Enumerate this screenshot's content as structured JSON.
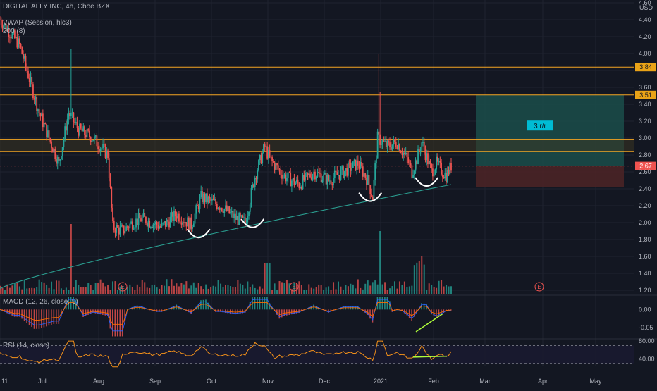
{
  "header": {
    "symbol": "DIGITAL ALLY INC, 4h, Cboe BZX",
    "indicator_vwap": "VWAP (Session, hlc3)",
    "indicator_sma": "200 (8)",
    "currency": "USD"
  },
  "macd_legend": "MACD (12, 26, close, 9)",
  "rsi_legend": "RSI (14, close)",
  "trade_box_label": "3 r/r",
  "earnings_marker": "E",
  "colors": {
    "background": "#131722",
    "up": "#26a69a",
    "down": "#ef5350",
    "level_line": "#f5a623",
    "sma": "#2a9d8f",
    "rsi": "#f7931a",
    "highlight": "#b0ff3a",
    "profit_zone": "#1b4d4a",
    "loss_zone": "#4a2326",
    "label_bg": "#e9a317",
    "rr_label_bg": "#00bcd4"
  },
  "chart_data": {
    "type": "candlestick",
    "timeframe": "4h",
    "price_range": [
      1.15,
      4.6
    ],
    "price_ticks": [
      "4.60",
      "4.40",
      "4.20",
      "4.00",
      "3.80",
      "3.60",
      "3.40",
      "3.20",
      "3.00",
      "2.80",
      "2.60",
      "2.40",
      "2.20",
      "2.00",
      "1.80",
      "1.60",
      "1.40",
      "1.20"
    ],
    "x_ticks": [
      "11",
      "Jul",
      "Aug",
      "Sep",
      "Oct",
      "Nov",
      "Dec",
      "2021",
      "Feb",
      "Mar",
      "Apr",
      "May"
    ],
    "price_path": [
      [
        0,
        4.4
      ],
      [
        4,
        4.1
      ],
      [
        8,
        3.3
      ],
      [
        10,
        3.0
      ],
      [
        12,
        2.7
      ],
      [
        14,
        3.3
      ],
      [
        16,
        3.1
      ],
      [
        19,
        3.0
      ],
      [
        22,
        2.8
      ],
      [
        23,
        1.95
      ],
      [
        25,
        1.9
      ],
      [
        27,
        2.0
      ],
      [
        29,
        2.05
      ],
      [
        33,
        1.95
      ],
      [
        36,
        2.1
      ],
      [
        39,
        1.97
      ],
      [
        41,
        2.3
      ],
      [
        45,
        2.2
      ],
      [
        48,
        2.05
      ],
      [
        50,
        2.0
      ],
      [
        52,
        2.55
      ],
      [
        54,
        2.9
      ],
      [
        55,
        2.75
      ],
      [
        58,
        2.55
      ],
      [
        61,
        2.45
      ],
      [
        64,
        2.6
      ],
      [
        67,
        2.5
      ],
      [
        70,
        2.6
      ],
      [
        73,
        2.7
      ],
      [
        75,
        2.5
      ],
      [
        76,
        2.3
      ],
      [
        77,
        3.0
      ],
      [
        79,
        2.9
      ],
      [
        81,
        2.95
      ],
      [
        83,
        2.75
      ],
      [
        84,
        2.6
      ],
      [
        85,
        2.75
      ],
      [
        86,
        2.95
      ],
      [
        88,
        2.6
      ],
      [
        89,
        2.7
      ],
      [
        90,
        2.62
      ],
      [
        91,
        2.55
      ],
      [
        92,
        2.67
      ]
    ],
    "price_levels": [
      {
        "label": "3.84",
        "value": 3.84
      },
      {
        "label": "3.51",
        "value": 3.51
      }
    ],
    "resistance_zone": [
      2.84,
      2.98
    ],
    "current_price": {
      "label": "2.67",
      "value": 2.67
    },
    "trade_setup": {
      "label": "3 r/r",
      "entry": 2.67,
      "target": 3.51,
      "stop": 2.42
    },
    "annotations": [
      "four rounded bottoms (higher lows) along the rising 200 SMA"
    ],
    "macd": {
      "ticks": [
        "0.00",
        "-0.05"
      ],
      "range": [
        -0.08,
        0.04
      ],
      "bullish_divergence": true
    },
    "rsi": {
      "ticks": [
        "80.00",
        "40.00"
      ],
      "range": [
        20,
        85
      ],
      "bands": [
        30,
        70
      ],
      "bullish_divergence": true
    }
  }
}
